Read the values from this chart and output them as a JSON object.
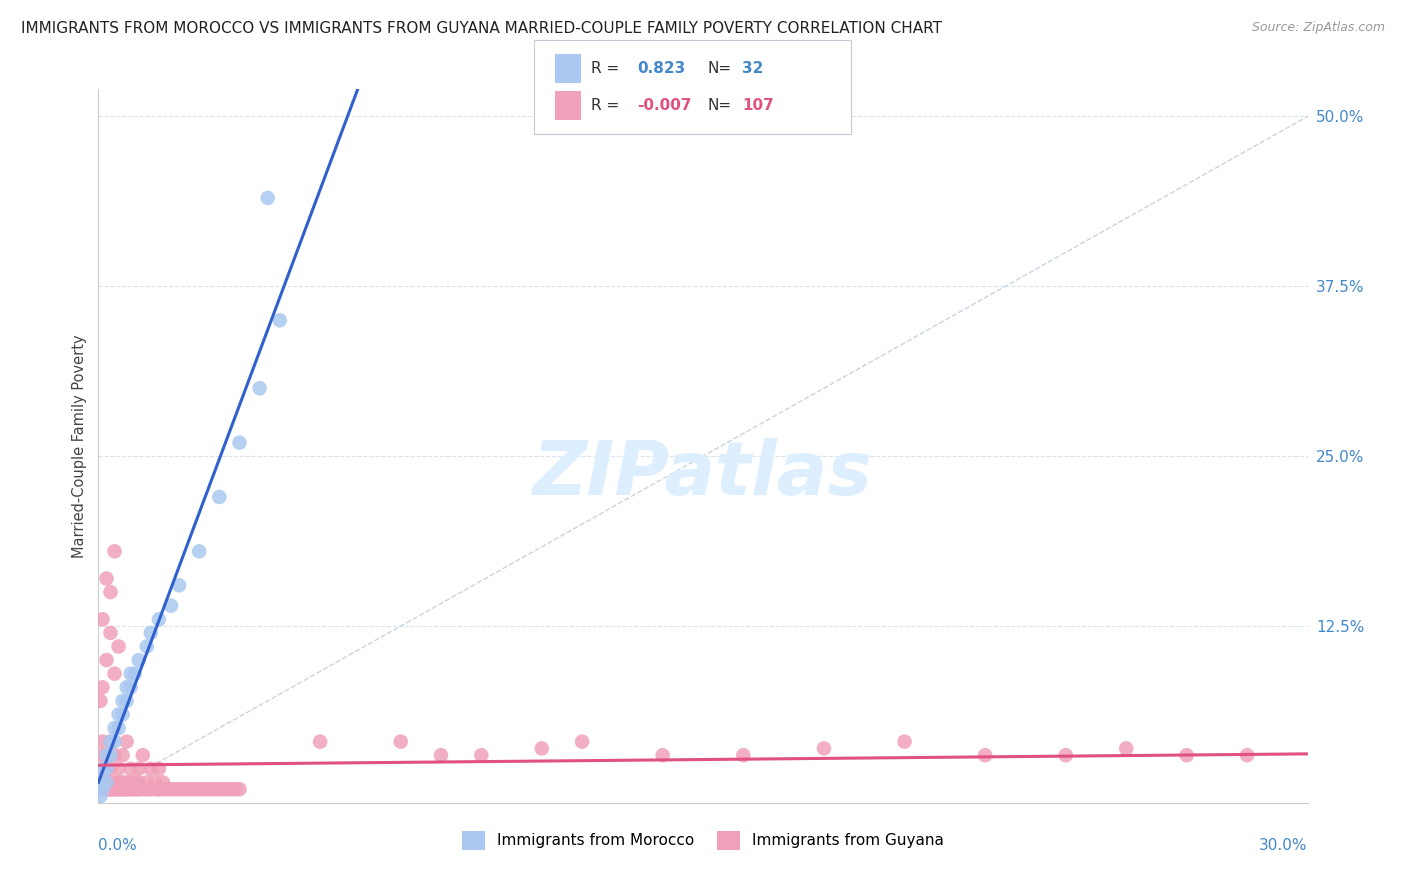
{
  "title": "IMMIGRANTS FROM MOROCCO VS IMMIGRANTS FROM GUYANA MARRIED-COUPLE FAMILY POVERTY CORRELATION CHART",
  "source": "Source: ZipAtlas.com",
  "ylabel": "Married-Couple Family Poverty",
  "xmin": 0.0,
  "xmax": 0.3,
  "ymin": -0.005,
  "ymax": 0.52,
  "legend_r_morocco": "0.823",
  "legend_n_morocco": "32",
  "legend_r_guyana": "-0.007",
  "legend_n_guyana": "107",
  "morocco_color": "#aac8f0",
  "guyana_color": "#f0a0b8",
  "morocco_line_color": "#3060cc",
  "guyana_line_color": "#e05080",
  "diag_line_color": "#c8d4e0",
  "grid_color": "#d8e4ee",
  "watermark_color": "#ddeeff",
  "bg_color": "#ffffff",
  "morocco_x": [
    0.0005,
    0.001,
    0.001,
    0.001,
    0.002,
    0.002,
    0.002,
    0.003,
    0.003,
    0.004,
    0.004,
    0.005,
    0.005,
    0.006,
    0.006,
    0.007,
    0.007,
    0.008,
    0.008,
    0.009,
    0.01,
    0.012,
    0.013,
    0.015,
    0.018,
    0.02,
    0.025,
    0.03,
    0.035,
    0.04,
    0.042,
    0.045
  ],
  "morocco_y": [
    0.0,
    0.005,
    0.01,
    0.02,
    0.01,
    0.02,
    0.03,
    0.03,
    0.04,
    0.04,
    0.05,
    0.05,
    0.06,
    0.06,
    0.07,
    0.07,
    0.08,
    0.08,
    0.09,
    0.09,
    0.1,
    0.11,
    0.12,
    0.13,
    0.14,
    0.155,
    0.18,
    0.22,
    0.26,
    0.3,
    0.44,
    0.35
  ],
  "guyana_x": [
    0.0005,
    0.001,
    0.001,
    0.001,
    0.001,
    0.001,
    0.002,
    0.002,
    0.002,
    0.002,
    0.003,
    0.003,
    0.003,
    0.003,
    0.004,
    0.004,
    0.004,
    0.005,
    0.005,
    0.005,
    0.006,
    0.006,
    0.006,
    0.007,
    0.007,
    0.007,
    0.008,
    0.008,
    0.008,
    0.009,
    0.009,
    0.01,
    0.01,
    0.01,
    0.011,
    0.011,
    0.012,
    0.012,
    0.013,
    0.013,
    0.014,
    0.014,
    0.015,
    0.015,
    0.016,
    0.016,
    0.017,
    0.018,
    0.019,
    0.02,
    0.021,
    0.022,
    0.023,
    0.024,
    0.025,
    0.026,
    0.027,
    0.028,
    0.029,
    0.03,
    0.031,
    0.032,
    0.033,
    0.034,
    0.035,
    0.0005,
    0.001,
    0.001,
    0.002,
    0.002,
    0.003,
    0.003,
    0.004,
    0.004,
    0.005,
    0.055,
    0.075,
    0.085,
    0.095,
    0.11,
    0.12,
    0.14,
    0.16,
    0.18,
    0.2,
    0.22,
    0.24,
    0.255,
    0.27,
    0.285,
    0.001,
    0.001,
    0.002,
    0.002,
    0.003,
    0.003,
    0.004,
    0.005,
    0.005,
    0.006,
    0.006,
    0.007,
    0.008,
    0.009,
    0.01,
    0.012,
    0.015
  ],
  "guyana_y": [
    0.005,
    0.005,
    0.01,
    0.02,
    0.03,
    0.04,
    0.005,
    0.01,
    0.02,
    0.03,
    0.005,
    0.01,
    0.02,
    0.04,
    0.005,
    0.01,
    0.03,
    0.005,
    0.01,
    0.02,
    0.005,
    0.01,
    0.03,
    0.005,
    0.01,
    0.04,
    0.005,
    0.01,
    0.02,
    0.005,
    0.01,
    0.005,
    0.01,
    0.02,
    0.005,
    0.03,
    0.005,
    0.01,
    0.005,
    0.02,
    0.005,
    0.01,
    0.005,
    0.02,
    0.005,
    0.01,
    0.005,
    0.005,
    0.005,
    0.005,
    0.005,
    0.005,
    0.005,
    0.005,
    0.005,
    0.005,
    0.005,
    0.005,
    0.005,
    0.005,
    0.005,
    0.005,
    0.005,
    0.005,
    0.005,
    0.07,
    0.08,
    0.13,
    0.1,
    0.16,
    0.12,
    0.15,
    0.09,
    0.18,
    0.11,
    0.04,
    0.04,
    0.03,
    0.03,
    0.035,
    0.04,
    0.03,
    0.03,
    0.035,
    0.04,
    0.03,
    0.03,
    0.035,
    0.03,
    0.03,
    0.005,
    0.005,
    0.005,
    0.005,
    0.005,
    0.005,
    0.005,
    0.005,
    0.005,
    0.005,
    0.005,
    0.005,
    0.005,
    0.005,
    0.005,
    0.005,
    0.005
  ]
}
